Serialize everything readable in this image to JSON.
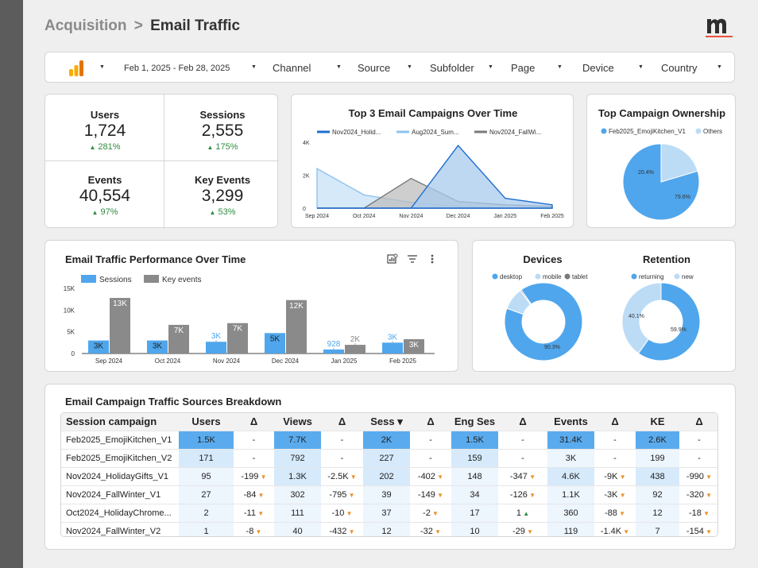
{
  "header": {
    "crumb": "Acquisition",
    "separator": ">",
    "page": "Email Traffic"
  },
  "brand": {
    "logo_letter": "m",
    "accent": "#e8523f"
  },
  "filters": {
    "date_range": "Feb 1, 2025 - Feb 28, 2025",
    "items": [
      "Channel",
      "Source",
      "Subfolder",
      "Page",
      "Device",
      "Country"
    ]
  },
  "kpis": [
    {
      "label": "Users",
      "value": "1,724",
      "delta": "281%"
    },
    {
      "label": "Sessions",
      "value": "2,555",
      "delta": "175%"
    },
    {
      "label": "Events",
      "value": "40,554",
      "delta": "97%"
    },
    {
      "label": "Key Events",
      "value": "3,299",
      "delta": "53%"
    }
  ],
  "campaigns_over_time": {
    "title": "Top 3 Email Campaigns Over Time",
    "legend": [
      "Nov2024_Holid...",
      "Aug2024_Sum...",
      "Nov2024_FallWi..."
    ],
    "y_ticks": [
      "4K",
      "2K",
      "0"
    ],
    "x_labels": [
      "Sep 2024",
      "Oct 2024",
      "Nov 2024",
      "Dec 2024",
      "Jan 2025",
      "Feb 2025"
    ]
  },
  "ownership": {
    "title": "Top Campaign Ownership",
    "legend": [
      "Feb2025_EmojiKitchen_V1",
      "Others"
    ],
    "main_label": "79.6%",
    "other_label": "20.4%"
  },
  "performance": {
    "title": "Email Traffic Performance Over Time",
    "legend": [
      "Sessions",
      "Key events"
    ],
    "y_ticks": [
      "15K",
      "10K",
      "5K",
      "0"
    ]
  },
  "devices": {
    "title": "Devices",
    "legend": [
      "desktop",
      "mobile",
      "tablet"
    ],
    "main_label": "90.3%"
  },
  "retention": {
    "title": "Retention",
    "legend": [
      "returning",
      "new"
    ],
    "returning_label": "59.9%",
    "new_label": "40.1%"
  },
  "sources": {
    "title": "Email Campaign Traffic Sources Breakdown",
    "columns": [
      "Session campaign",
      "Users",
      "Δ",
      "Views",
      "Δ",
      "Sess ▾",
      "Δ",
      "Eng Ses",
      "Δ",
      "Events",
      "Δ",
      "KE",
      "Δ"
    ],
    "rows": [
      [
        "Feb2025_EmojiKitchen_V1",
        "1.5K",
        "-",
        "7.7K",
        "-",
        "2K",
        "-",
        "1.5K",
        "-",
        "31.4K",
        "-",
        "2.6K",
        "-"
      ],
      [
        "Feb2025_EmojiKitchen_V2",
        "171",
        "-",
        "792",
        "-",
        "227",
        "-",
        "159",
        "-",
        "3K",
        "-",
        "199",
        "-"
      ],
      [
        "Nov2024_HolidayGifts_V1",
        "95",
        "-199",
        "1.3K",
        "-2.5K",
        "202",
        "-402",
        "148",
        "-347",
        "4.6K",
        "-9K",
        "438",
        "-990"
      ],
      [
        "Nov2024_FallWinter_V1",
        "27",
        "-84",
        "302",
        "-795",
        "39",
        "-149",
        "34",
        "-126",
        "1.1K",
        "-3K",
        "92",
        "-320"
      ],
      [
        "Oct2024_HolidayChrome...",
        "2",
        "-11",
        "111",
        "-10",
        "37",
        "-2",
        "17",
        "1",
        "360",
        "-88",
        "12",
        "-18"
      ],
      [
        "Nov2024_FallWinter_V2",
        "1",
        "-8",
        "40",
        "-432",
        "12",
        "-32",
        "10",
        "-29",
        "119",
        "-1.4K",
        "7",
        "-154"
      ]
    ]
  },
  "chart_data": [
    {
      "type": "area",
      "title": "Top 3 Email Campaigns Over Time",
      "categories": [
        "Sep 2024",
        "Oct 2024",
        "Nov 2024",
        "Dec 2024",
        "Jan 2025",
        "Feb 2025"
      ],
      "series": [
        {
          "name": "Nov2024_Holid...",
          "values": [
            0,
            0,
            0,
            3800,
            600,
            200
          ]
        },
        {
          "name": "Aug2024_Sum...",
          "values": [
            2400,
            800,
            350,
            100,
            0,
            0
          ]
        },
        {
          "name": "Nov2024_FallWi...",
          "values": [
            0,
            0,
            1800,
            400,
            200,
            100
          ]
        }
      ],
      "ylim": [
        0,
        4000
      ],
      "colors": [
        "#1f6fd1",
        "#8fc3ee",
        "#7a7a7a"
      ]
    },
    {
      "type": "pie",
      "title": "Top Campaign Ownership",
      "categories": [
        "Feb2025_EmojiKitchen_V1",
        "Others"
      ],
      "values": [
        79.6,
        20.4
      ],
      "colors": [
        "#4fa6ec",
        "#bcdcf6"
      ]
    },
    {
      "type": "bar",
      "title": "Email Traffic Performance Over Time",
      "categories": [
        "Sep 2024",
        "Oct 2024",
        "Nov 2024",
        "Dec 2024",
        "Jan 2025",
        "Feb 2025"
      ],
      "series": [
        {
          "name": "Sessions",
          "values": [
            3000,
            3000,
            2700,
            4700,
            928,
            2500
          ],
          "labels": [
            "3K",
            "3K",
            "3K",
            "5K",
            "928",
            "3K"
          ]
        },
        {
          "name": "Key events",
          "values": [
            12800,
            6600,
            7000,
            12300,
            2000,
            3300
          ],
          "labels": [
            "13K",
            "7K",
            "7K",
            "12K",
            "2K",
            "3K"
          ]
        }
      ],
      "ylim": [
        0,
        15000
      ],
      "colors": [
        "#4fa6ec",
        "#8a8a8a"
      ]
    },
    {
      "type": "pie",
      "title": "Devices",
      "categories": [
        "desktop",
        "mobile",
        "tablet"
      ],
      "values": [
        90.3,
        9.2,
        0.5
      ],
      "colors": [
        "#4fa6ec",
        "#bcdcf6",
        "#7a7a7a"
      ]
    },
    {
      "type": "pie",
      "title": "Retention",
      "categories": [
        "returning",
        "new"
      ],
      "values": [
        59.9,
        40.1
      ],
      "colors": [
        "#4fa6ec",
        "#bcdcf6"
      ]
    }
  ]
}
